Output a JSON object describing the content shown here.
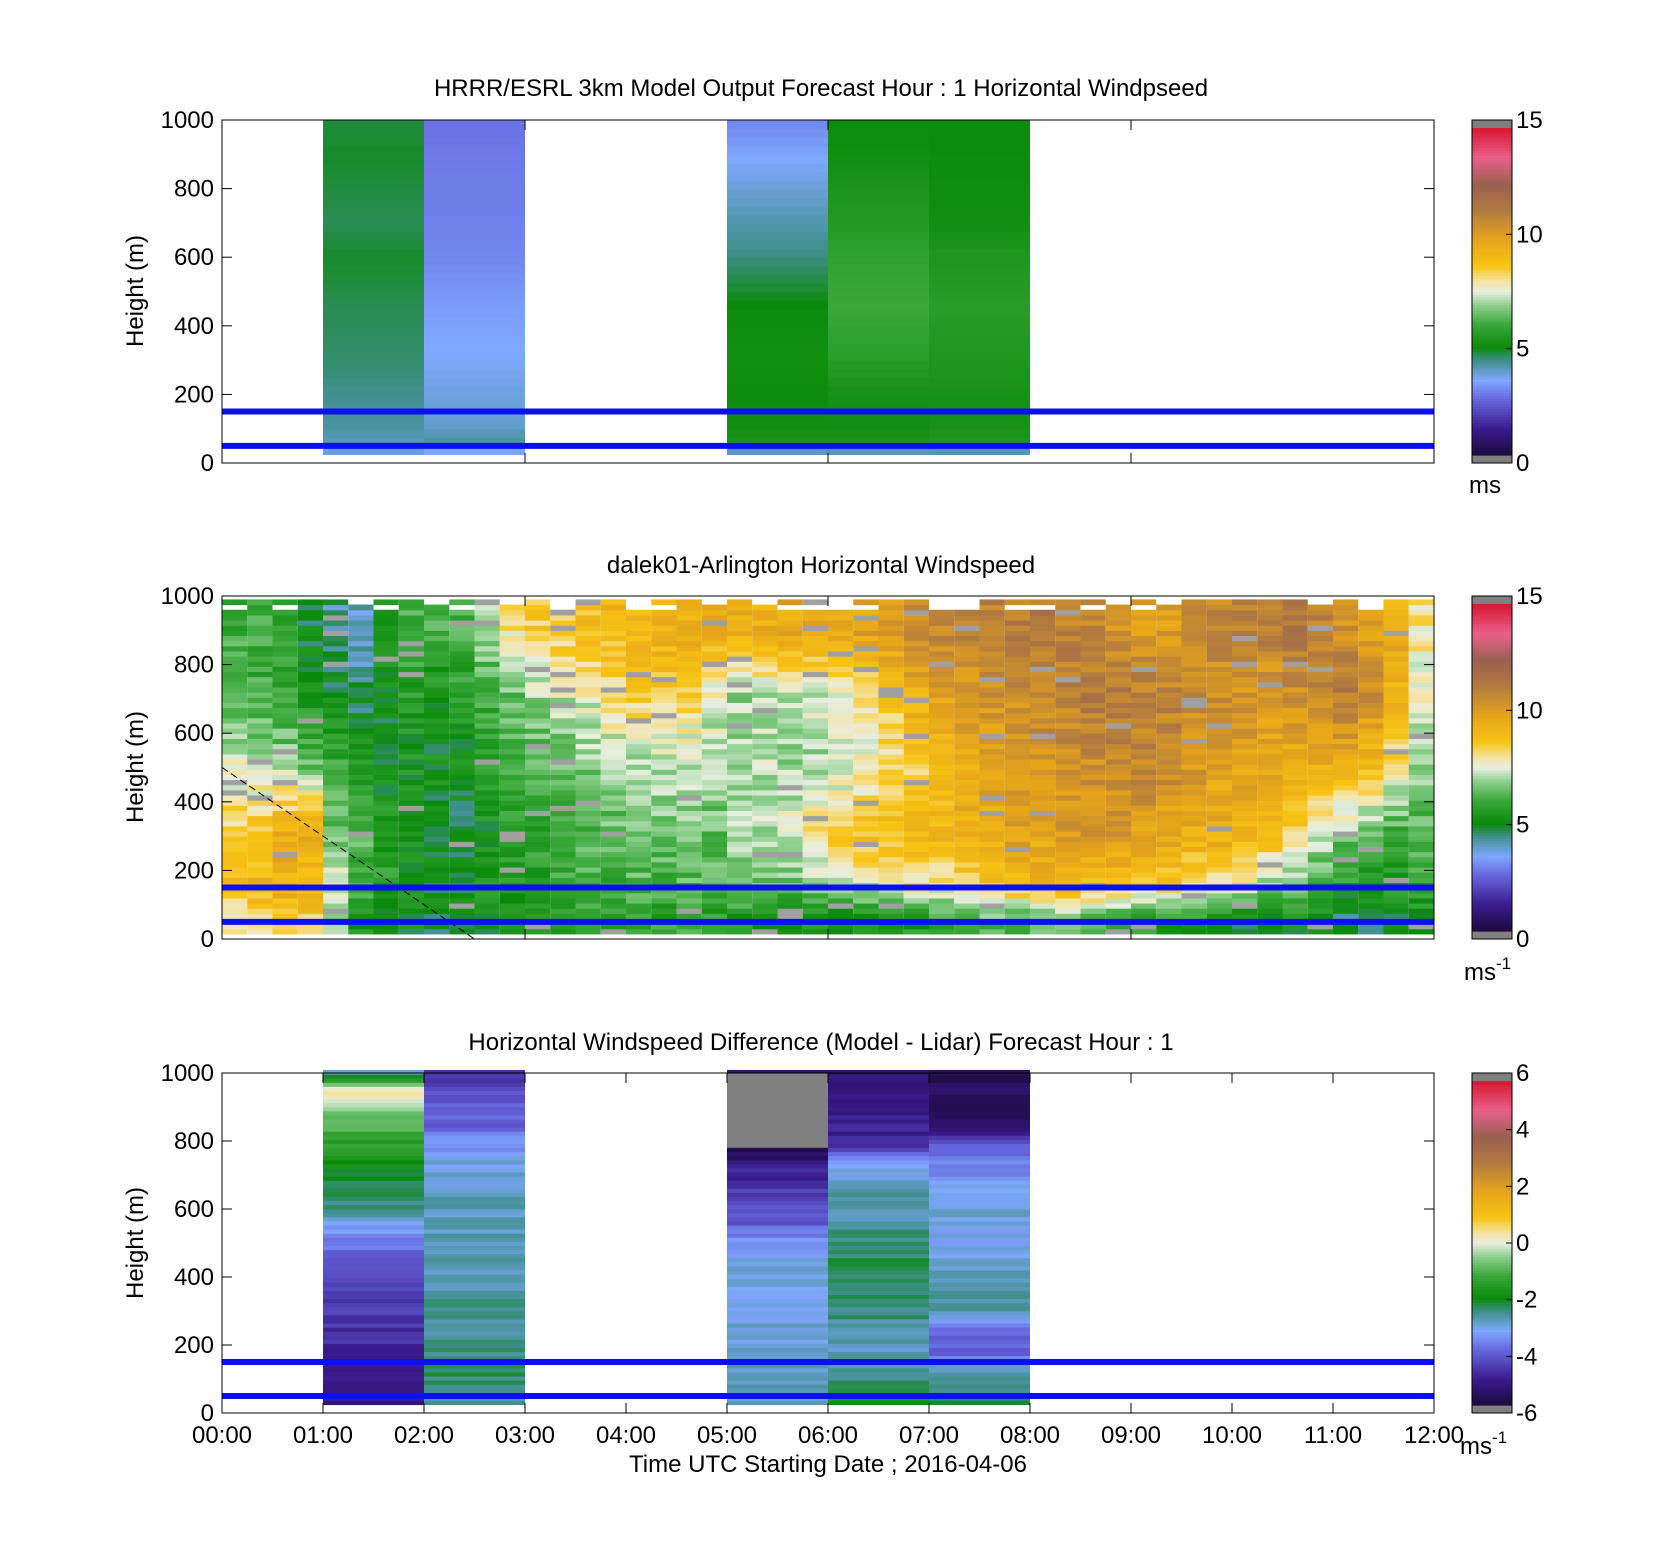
{
  "chart_data": [
    {
      "type": "heatmap",
      "title": "HRRR/ESRL 3km Model Output   Forecast Hour : 1 Horizontal Windpseed",
      "ylabel": "Height (m)",
      "ylim": [
        0,
        1000
      ],
      "yticks": [
        "0",
        "200",
        "400",
        "600",
        "800",
        "1000"
      ],
      "xlim": [
        "00:00",
        "12:00"
      ],
      "grid": false,
      "colorbar": {
        "range": [
          0,
          15
        ],
        "ticks": [
          "0",
          "5",
          "10",
          "15"
        ],
        "unit": "ms"
      },
      "reference_lines_m": [
        50,
        150
      ],
      "columns": [
        {
          "start": "01:00",
          "end": "02:00",
          "profile": [
            [
              25,
              3.6
            ],
            [
              60,
              4.0
            ],
            [
              120,
              4.2
            ],
            [
              200,
              4.3
            ],
            [
              300,
              4.5
            ],
            [
              450,
              4.6
            ],
            [
              600,
              4.8
            ],
            [
              700,
              4.6
            ],
            [
              900,
              4.8
            ],
            [
              1000,
              4.7
            ]
          ]
        },
        {
          "start": "02:00",
          "end": "03:00",
          "profile": [
            [
              25,
              3.1
            ],
            [
              60,
              4.2
            ],
            [
              120,
              3.8
            ],
            [
              200,
              3.7
            ],
            [
              300,
              3.5
            ],
            [
              450,
              3.3
            ],
            [
              600,
              3.0
            ],
            [
              700,
              2.9
            ],
            [
              900,
              2.8
            ],
            [
              1000,
              2.7
            ]
          ]
        },
        {
          "start": "05:00",
          "end": "06:00",
          "profile": [
            [
              25,
              3.2
            ],
            [
              60,
              5.3
            ],
            [
              120,
              5.1
            ],
            [
              200,
              5.0
            ],
            [
              300,
              5.1
            ],
            [
              450,
              5.0
            ],
            [
              600,
              4.4
            ],
            [
              700,
              4.1
            ],
            [
              900,
              3.4
            ],
            [
              1000,
              3.0
            ]
          ]
        },
        {
          "start": "06:00",
          "end": "07:00",
          "profile": [
            [
              25,
              3.3
            ],
            [
              60,
              5.3
            ],
            [
              120,
              5.1
            ],
            [
              200,
              5.2
            ],
            [
              300,
              5.6
            ],
            [
              450,
              6.0
            ],
            [
              600,
              5.8
            ],
            [
              700,
              5.5
            ],
            [
              900,
              5.1
            ],
            [
              1000,
              5.0
            ]
          ]
        },
        {
          "start": "07:00",
          "end": "08:00",
          "profile": [
            [
              25,
              3.3
            ],
            [
              60,
              5.4
            ],
            [
              120,
              5.2
            ],
            [
              200,
              5.2
            ],
            [
              300,
              5.4
            ],
            [
              450,
              5.6
            ],
            [
              600,
              5.4
            ],
            [
              700,
              5.1
            ],
            [
              900,
              5.0
            ],
            [
              1000,
              5.0
            ]
          ]
        }
      ]
    },
    {
      "type": "heatmap",
      "title": "dalek01-Arlington  Horizontal Windspeed",
      "ylabel": "Height (m)",
      "ylim": [
        0,
        1000
      ],
      "yticks": [
        "0",
        "200",
        "400",
        "600",
        "800",
        "1000"
      ],
      "xlim": [
        "00:00",
        "12:00"
      ],
      "grid": false,
      "colorbar": {
        "range": [
          0,
          15
        ],
        "ticks": [
          "0",
          "5",
          "10",
          "15"
        ],
        "unit": "ms",
        "unit_exponent": "-1"
      },
      "reference_lines_m": [
        50,
        150
      ],
      "dashed_line": {
        "from": [
          "00:00",
          500
        ],
        "to": [
          "02:30",
          0
        ]
      },
      "time_step_minutes": 15,
      "columns_time": [
        "00:00",
        "00:15",
        "00:30",
        "00:45",
        "01:00",
        "01:15",
        "01:30",
        "01:45",
        "02:00",
        "02:15",
        "02:30",
        "02:45",
        "03:00",
        "03:15",
        "03:30",
        "03:45",
        "04:00",
        "04:15",
        "04:30",
        "04:45",
        "05:00",
        "05:15",
        "05:30",
        "05:45",
        "06:00",
        "06:15",
        "06:30",
        "06:45",
        "07:00",
        "07:15",
        "07:30",
        "07:45",
        "08:00",
        "08:15",
        "08:30",
        "08:45",
        "09:00",
        "09:15",
        "09:30",
        "09:45",
        "10:00",
        "10:15",
        "10:30",
        "10:45",
        "11:00",
        "11:15",
        "11:30",
        "11:45"
      ],
      "profile_heights_m": [
        50,
        150,
        300,
        500,
        700,
        900
      ],
      "windspeed_ms": [
        [
          8.0,
          9.0,
          8.5,
          7.5,
          6.0,
          6.0
        ],
        [
          8.3,
          9.2,
          8.8,
          7.2,
          6.0,
          6.0
        ],
        [
          8.8,
          9.5,
          9.5,
          7.0,
          5.8,
          5.5
        ],
        [
          8.6,
          9.0,
          9.6,
          6.5,
          5.2,
          4.8
        ],
        [
          7.2,
          7.5,
          6.5,
          6.0,
          5.0,
          4.2
        ],
        [
          5.5,
          6.0,
          6.2,
          5.5,
          4.5,
          4.0
        ],
        [
          5.0,
          5.6,
          5.5,
          5.0,
          5.0,
          5.5
        ],
        [
          5.0,
          5.3,
          5.2,
          5.2,
          5.5,
          6.0
        ],
        [
          4.8,
          5.0,
          5.0,
          5.0,
          5.2,
          6.0
        ],
        [
          4.8,
          5.0,
          4.8,
          5.0,
          5.5,
          6.2
        ],
        [
          5.0,
          5.3,
          5.2,
          5.5,
          6.0,
          7.0
        ],
        [
          5.2,
          5.5,
          5.5,
          6.0,
          6.5,
          8.0
        ],
        [
          5.5,
          5.5,
          5.8,
          6.3,
          7.0,
          8.5
        ],
        [
          5.6,
          5.8,
          6.0,
          6.5,
          7.3,
          8.6
        ],
        [
          5.8,
          6.0,
          6.2,
          6.8,
          7.5,
          9.0
        ],
        [
          5.7,
          6.0,
          6.4,
          7.0,
          8.0,
          9.2
        ],
        [
          5.8,
          6.2,
          6.5,
          7.0,
          8.4,
          9.3
        ],
        [
          5.7,
          6.0,
          6.5,
          7.2,
          8.5,
          9.5
        ],
        [
          5.8,
          6.2,
          6.8,
          7.0,
          8.3,
          9.6
        ],
        [
          5.6,
          6.2,
          6.5,
          7.0,
          7.5,
          9.7
        ],
        [
          5.5,
          6.3,
          7.0,
          7.0,
          7.0,
          9.5
        ],
        [
          5.5,
          6.5,
          7.2,
          7.2,
          7.0,
          9.5
        ],
        [
          5.2,
          6.5,
          7.5,
          7.0,
          7.2,
          9.8
        ],
        [
          5.4,
          6.8,
          8.0,
          7.0,
          7.3,
          9.6
        ],
        [
          5.0,
          7.0,
          8.5,
          7.2,
          7.5,
          9.8
        ],
        [
          5.2,
          7.5,
          8.8,
          7.5,
          8.0,
          10.0
        ],
        [
          5.5,
          7.5,
          9.0,
          8.0,
          8.8,
          10.2
        ],
        [
          5.5,
          8.0,
          9.2,
          8.5,
          9.5,
          10.5
        ],
        [
          5.8,
          8.0,
          9.3,
          9.0,
          10.0,
          10.8
        ],
        [
          6.0,
          8.5,
          9.5,
          9.4,
          10.3,
          11.0
        ],
        [
          6.2,
          8.8,
          9.7,
          9.8,
          10.5,
          11.0
        ],
        [
          6.0,
          9.0,
          10.0,
          10.2,
          10.6,
          11.2
        ],
        [
          6.5,
          9.0,
          10.0,
          10.4,
          10.8,
          11.3
        ],
        [
          6.5,
          9.2,
          10.2,
          10.5,
          11.0,
          11.0
        ],
        [
          6.2,
          9.0,
          10.3,
          10.6,
          11.2,
          10.8
        ],
        [
          6.0,
          8.8,
          10.2,
          10.8,
          11.3,
          10.5
        ],
        [
          5.8,
          8.5,
          10.0,
          10.8,
          11.2,
          10.0
        ],
        [
          5.5,
          8.5,
          9.8,
          10.6,
          11.0,
          10.0
        ],
        [
          5.5,
          8.2,
          9.6,
          10.3,
          10.8,
          10.5
        ],
        [
          5.2,
          8.0,
          9.5,
          10.0,
          10.5,
          10.8
        ],
        [
          5.0,
          7.5,
          9.3,
          10.0,
          10.3,
          11.0
        ],
        [
          5.0,
          7.0,
          9.0,
          10.0,
          10.0,
          11.2
        ],
        [
          5.0,
          6.5,
          8.5,
          9.5,
          10.5,
          11.5
        ],
        [
          4.8,
          6.0,
          7.5,
          9.5,
          11.0,
          11.0
        ],
        [
          4.5,
          5.5,
          6.8,
          9.5,
          11.2,
          10.5
        ],
        [
          4.5,
          5.5,
          6.5,
          9.0,
          10.5,
          10.0
        ],
        [
          4.8,
          5.5,
          6.0,
          8.0,
          9.5,
          9.5
        ],
        [
          5.0,
          5.8,
          6.2,
          6.8,
          7.5,
          8.0
        ]
      ]
    },
    {
      "type": "heatmap",
      "title": "Horizontal Windspeed Difference (Model - Lidar) Forecast Hour : 1",
      "xlabel": "Time UTC  Starting Date ; 2016-04-06",
      "ylabel": "Height (m)",
      "ylim": [
        0,
        1000
      ],
      "yticks": [
        "0",
        "200",
        "400",
        "600",
        "800",
        "1000"
      ],
      "xticks": [
        "00:00",
        "01:00",
        "02:00",
        "03:00",
        "04:00",
        "05:00",
        "06:00",
        "07:00",
        "08:00",
        "09:00",
        "10:00",
        "11:00",
        "12:00"
      ],
      "grid": false,
      "colorbar": {
        "range": [
          -6,
          6
        ],
        "ticks": [
          "-6",
          "-4",
          "-2",
          "0",
          "2",
          "4",
          "6"
        ],
        "unit": "ms",
        "unit_exponent": "-1"
      },
      "reference_lines_m": [
        50,
        150
      ],
      "columns": [
        {
          "start": "01:00",
          "end": "02:00",
          "profile": [
            [
              30,
              -5.2
            ],
            [
              100,
              -5.0
            ],
            [
              200,
              -4.8
            ],
            [
              300,
              -4.6
            ],
            [
              420,
              -4.4
            ],
            [
              520,
              -3.6
            ],
            [
              600,
              -2.6
            ],
            [
              720,
              -2.0
            ],
            [
              820,
              -1.2
            ],
            [
              900,
              -0.5
            ],
            [
              950,
              0.4
            ],
            [
              1000,
              -3.0
            ]
          ]
        },
        {
          "start": "02:00",
          "end": "03:00",
          "profile": [
            [
              30,
              -2.6
            ],
            [
              100,
              -2.4
            ],
            [
              200,
              -2.5
            ],
            [
              300,
              -2.6
            ],
            [
              450,
              -2.8
            ],
            [
              600,
              -2.8
            ],
            [
              720,
              -3.0
            ],
            [
              780,
              -3.4
            ],
            [
              850,
              -4.0
            ],
            [
              950,
              -4.3
            ],
            [
              1000,
              -4.8
            ]
          ]
        },
        {
          "start": "05:00",
          "end": "06:00",
          "profile": [
            [
              30,
              -2.8
            ],
            [
              100,
              -2.9
            ],
            [
              200,
              -3.0
            ],
            [
              300,
              -3.1
            ],
            [
              400,
              -3.0
            ],
            [
              500,
              -3.4
            ],
            [
              560,
              -4.1
            ],
            [
              650,
              -4.6
            ],
            [
              720,
              -5.0
            ],
            [
              760,
              -5.6
            ]
          ]
        },
        {
          "start": "06:00",
          "end": "07:00",
          "profile": [
            [
              30,
              -1.8
            ],
            [
              100,
              -2.6
            ],
            [
              200,
              -2.8
            ],
            [
              300,
              -2.5
            ],
            [
              420,
              -2.2
            ],
            [
              550,
              -2.6
            ],
            [
              650,
              -2.8
            ],
            [
              720,
              -3.0
            ],
            [
              800,
              -4.9
            ],
            [
              1000,
              -5.3
            ]
          ]
        },
        {
          "start": "07:00",
          "end": "08:00",
          "profile": [
            [
              30,
              -2.0
            ],
            [
              80,
              -2.5
            ],
            [
              130,
              -2.9
            ],
            [
              180,
              -4.2
            ],
            [
              230,
              -4.0
            ],
            [
              300,
              -2.8
            ],
            [
              400,
              -2.7
            ],
            [
              500,
              -3.3
            ],
            [
              600,
              -3.0
            ],
            [
              700,
              -3.5
            ],
            [
              780,
              -4.0
            ],
            [
              850,
              -5.4
            ],
            [
              1000,
              -5.7
            ]
          ]
        }
      ],
      "masked_region": {
        "start": "05:00",
        "end": "06:00",
        "from_m": 780,
        "to_m": 1000
      }
    }
  ]
}
